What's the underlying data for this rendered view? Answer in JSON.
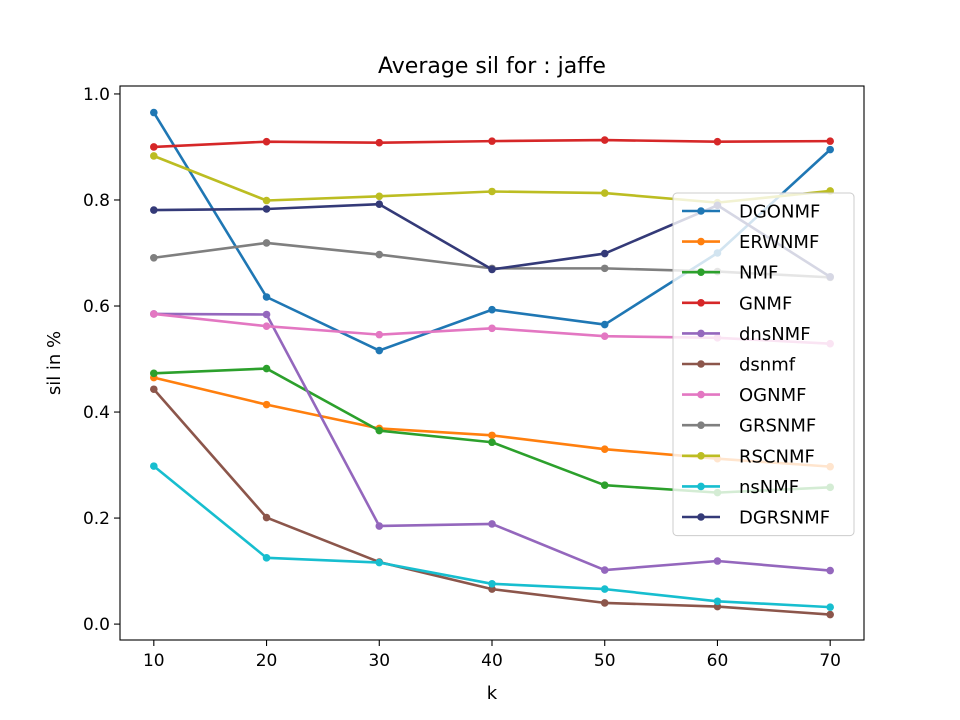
{
  "chart_data": {
    "type": "line",
    "title": "Average sil for : jaffe",
    "xlabel": "k",
    "ylabel": "sil in %",
    "x": [
      10,
      20,
      30,
      40,
      50,
      60,
      70
    ],
    "xlim": [
      7,
      73
    ],
    "ylim": [
      -0.03,
      1.015
    ],
    "xticks": [
      10,
      20,
      30,
      40,
      50,
      60,
      70
    ],
    "yticks": [
      0.0,
      0.2,
      0.4,
      0.6,
      0.8,
      1.0
    ],
    "ytick_labels": [
      "0.0",
      "0.2",
      "0.4",
      "0.6",
      "0.8",
      "1.0"
    ],
    "grid": false,
    "legend_position": "center-right",
    "series": [
      {
        "name": "DGONMF",
        "color": "#1f77b4",
        "values": [
          0.965,
          0.617,
          0.516,
          0.593,
          0.565,
          0.7,
          0.895
        ]
      },
      {
        "name": "ERWNMF",
        "color": "#ff7f0e",
        "values": [
          0.465,
          0.414,
          0.369,
          0.356,
          0.33,
          0.312,
          0.297
        ]
      },
      {
        "name": "NMF",
        "color": "#2ca02c",
        "values": [
          0.473,
          0.482,
          0.365,
          0.343,
          0.262,
          0.248,
          0.258
        ]
      },
      {
        "name": "GNMF",
        "color": "#d62728",
        "values": [
          0.9,
          0.91,
          0.908,
          0.911,
          0.913,
          0.91,
          0.911
        ]
      },
      {
        "name": "dnsNMF",
        "color": "#9467bd",
        "values": [
          0.585,
          0.584,
          0.185,
          0.189,
          0.102,
          0.119,
          0.101
        ]
      },
      {
        "name": "dsnmf",
        "color": "#8c564b",
        "values": [
          0.443,
          0.201,
          0.117,
          0.066,
          0.04,
          0.033,
          0.018
        ]
      },
      {
        "name": "OGNMF",
        "color": "#e377c2",
        "values": [
          0.585,
          0.562,
          0.546,
          0.558,
          0.543,
          0.54,
          0.529
        ]
      },
      {
        "name": "GRSNMF",
        "color": "#7f7f7f",
        "values": [
          0.691,
          0.719,
          0.697,
          0.671,
          0.671,
          0.665,
          0.654
        ]
      },
      {
        "name": "RSCNMF",
        "color": "#bcbd22",
        "values": [
          0.883,
          0.799,
          0.807,
          0.816,
          0.813,
          0.795,
          0.817
        ]
      },
      {
        "name": "nsNMF",
        "color": "#17becf",
        "values": [
          0.298,
          0.125,
          0.116,
          0.076,
          0.066,
          0.043,
          0.032
        ]
      },
      {
        "name": "DGRSNMF",
        "color": "#343a78",
        "values": [
          0.781,
          0.783,
          0.792,
          0.669,
          0.699,
          0.79,
          0.655
        ]
      }
    ]
  }
}
